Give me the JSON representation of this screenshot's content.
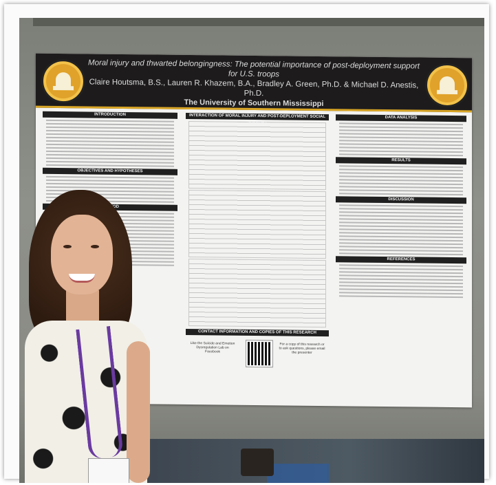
{
  "poster": {
    "title_line1": "Moral injury and thwarted belongingness: The potential importance of post-deployment support for U.S. troops",
    "authors": "Claire Houtsma, B.S., Lauren R. Khazem, B.A., Bradley A. Green, Ph.D. & Michael D. Anestis, Ph.D.",
    "institution": "The University of Southern Mississippi",
    "sections": {
      "introduction": "INTRODUCTION",
      "hypotheses": "OBJECTIVES AND HYPOTHESES",
      "method": "METHOD",
      "interaction": "INTERACTION OF MORAL INJURY AND POST-DEPLOYMENT SOCIAL SUPPORT",
      "contact": "CONTACT INFORMATION AND COPIES OF THIS RESEARCH",
      "data_analysis": "DATA ANALYSIS",
      "results": "RESULTS",
      "discussion": "DISCUSSION",
      "references": "REFERENCES"
    },
    "contact_left": "Like the Suicide and Emotion Dysregulation Lab on Facebook",
    "contact_right": "For a copy of this research or to ask questions, please email the presenter"
  },
  "colors": {
    "banner": "#1d1b1c",
    "accent_gold": "#d9a626",
    "lanyard": "#6a3aa0"
  }
}
